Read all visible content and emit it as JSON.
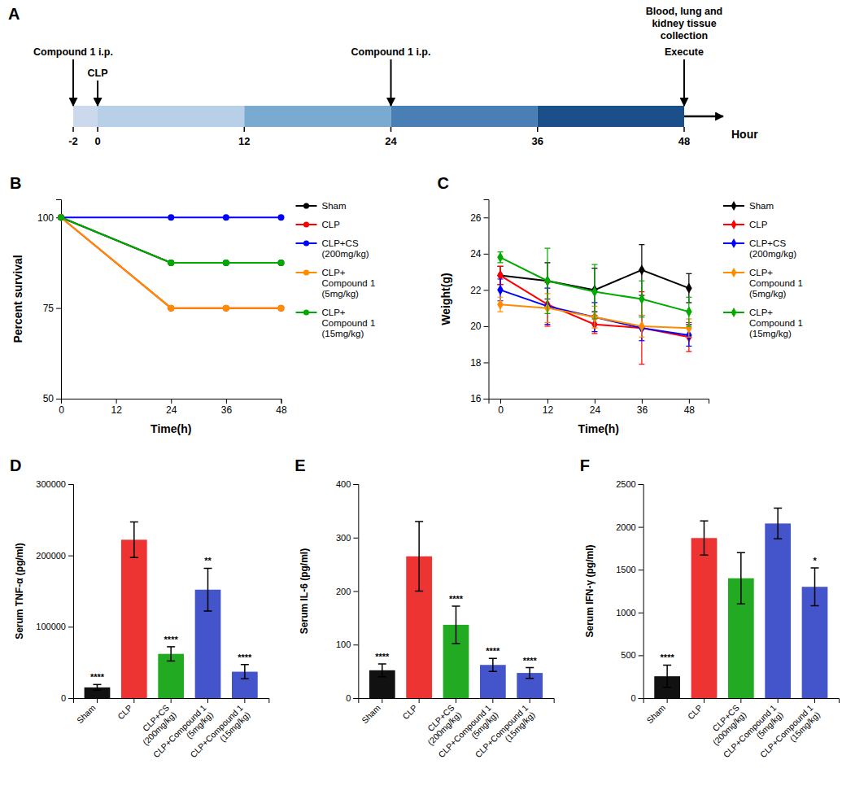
{
  "chart_data": [
    {
      "type": "timeline",
      "title": "A",
      "xlabel": "Hour",
      "xlim": [
        -2,
        48
      ],
      "xticks": [
        -2,
        0,
        12,
        24,
        36,
        48
      ],
      "x": [
        -2,
        0,
        12,
        24,
        36,
        48
      ],
      "colors": [
        "#ccd9ec",
        "#b8cfe8",
        "#7baad0",
        "#4a7fb5",
        "#1a4f8a"
      ],
      "annotations": [
        {
          "x": -2,
          "text": "Compound 1 i.p."
        },
        {
          "x": 0,
          "text": "CLP"
        },
        {
          "x": 24,
          "text": "Compound 1 i.p."
        },
        {
          "x": 48,
          "text": "Execute"
        },
        {
          "x": 48,
          "text": "Blood, lung and\nkidney tissue\ncollection"
        }
      ]
    },
    {
      "type": "line",
      "title": "B",
      "xlabel": "Time(h)",
      "ylabel": "Percent survival",
      "xlim": [
        0,
        48
      ],
      "ylim": [
        50,
        105
      ],
      "xticks": [
        0,
        12,
        24,
        36,
        48
      ],
      "yticks": [
        50,
        75,
        100
      ],
      "x": [
        0,
        24,
        36,
        48
      ],
      "marker": "circle",
      "legend": "right",
      "series": [
        {
          "name": "Sham",
          "color": "#000000",
          "values": [
            100,
            87.5,
            87.5,
            87.5
          ]
        },
        {
          "name": "CLP",
          "color": "#ff0000",
          "values": [
            100,
            75,
            75,
            75
          ]
        },
        {
          "name": "CLP+CS\n(200mg/kg)",
          "color": "#0000ff",
          "values": [
            100,
            100,
            100,
            100
          ]
        },
        {
          "name": "CLP+\nCompound 1\n(5mg/kg)",
          "color": "#ff8c00",
          "values": [
            100,
            75,
            75,
            75
          ]
        },
        {
          "name": "CLP+\nCompound 1\n(15mg/kg)",
          "color": "#00aa00",
          "values": [
            100,
            87.5,
            87.5,
            87.5
          ]
        }
      ]
    },
    {
      "type": "line",
      "title": "C",
      "xlabel": "Time(h)",
      "ylabel": "Weight(g)",
      "xlim": [
        -3,
        53
      ],
      "ylim": [
        16,
        27
      ],
      "xticks": [
        0,
        12,
        24,
        36,
        48
      ],
      "yticks": [
        16,
        18,
        20,
        22,
        24,
        26
      ],
      "x": [
        0,
        12,
        24,
        36,
        48
      ],
      "marker": "diamond",
      "legend": "right",
      "series": [
        {
          "name": "Sham",
          "color": "#000000",
          "values": [
            22.8,
            22.5,
            22.0,
            23.1,
            22.1
          ],
          "errors": [
            0.5,
            1.0,
            1.2,
            1.4,
            0.8
          ]
        },
        {
          "name": "CLP",
          "color": "#ff0000",
          "values": [
            22.8,
            21.2,
            20.1,
            19.9,
            19.4
          ],
          "errors": [
            0.5,
            1.2,
            0.5,
            2.0,
            0.8
          ]
        },
        {
          "name": "CLP+CS\n(200mg/kg)",
          "color": "#0000ff",
          "values": [
            22.0,
            21.1,
            20.5,
            19.9,
            19.5
          ],
          "errors": [
            0.6,
            1.0,
            0.8,
            0.7,
            0.6
          ]
        },
        {
          "name": "CLP+\nCompound 1\n(5mg/kg)",
          "color": "#ff8c00",
          "values": [
            21.2,
            21.0,
            20.5,
            20.0,
            19.9
          ],
          "errors": [
            0.4,
            0.8,
            0.6,
            0.6,
            0.5
          ]
        },
        {
          "name": "CLP+\nCompound 1\n(15mg/kg)",
          "color": "#00aa00",
          "values": [
            23.8,
            22.5,
            21.9,
            21.5,
            20.8
          ],
          "errors": [
            0.3,
            1.8,
            1.5,
            1.0,
            0.8
          ]
        }
      ]
    },
    {
      "type": "bar",
      "title": "D",
      "ylabel": "Serum TNF-α (pg/ml)",
      "ylim": [
        0,
        300000
      ],
      "yticks": [
        0,
        100000,
        200000,
        300000
      ],
      "categories": [
        "Sham",
        "CLP",
        "CLP+CS\n(200mg/kg)",
        "CLP+Compound 1\n(5mg/kg)",
        "CLP+Compound 1\n(15mg/kg)"
      ],
      "values": [
        15000,
        222000,
        62000,
        152000,
        37000
      ],
      "errors": [
        4000,
        25000,
        10000,
        30000,
        10000
      ],
      "colors": [
        "#111111",
        "#ee3333",
        "#22aa22",
        "#4455cc",
        "#4455cc"
      ],
      "annotations": [
        {
          "category": "Sham",
          "text": "****"
        },
        {
          "category": "CLP+CS\n(200mg/kg)",
          "text": "****"
        },
        {
          "category": "CLP+Compound 1\n(5mg/kg)",
          "text": "**"
        },
        {
          "category": "CLP+Compound 1\n(15mg/kg)",
          "text": "****"
        }
      ]
    },
    {
      "type": "bar",
      "title": "E",
      "ylabel": "Serum IL-6 (pg/ml)",
      "ylim": [
        0,
        400
      ],
      "yticks": [
        0,
        100,
        200,
        300,
        400
      ],
      "categories": [
        "Sham",
        "CLP",
        "CLP+CS\n(200mg/kg)",
        "CLP+Compound 1\n(5mg/kg)",
        "CLP+Compound 1\n(15mg/kg)"
      ],
      "values": [
        52,
        265,
        137,
        62,
        47
      ],
      "errors": [
        12,
        65,
        35,
        12,
        10
      ],
      "colors": [
        "#111111",
        "#ee3333",
        "#22aa22",
        "#4455cc",
        "#4455cc"
      ],
      "annotations": [
        {
          "category": "Sham",
          "text": "****"
        },
        {
          "category": "CLP+CS\n(200mg/kg)",
          "text": "****"
        },
        {
          "category": "CLP+Compound 1\n(5mg/kg)",
          "text": "****"
        },
        {
          "category": "CLP+Compound 1\n(15mg/kg)",
          "text": "****"
        }
      ]
    },
    {
      "type": "bar",
      "title": "F",
      "ylabel": "Serum IFN-γ (pg/ml)",
      "ylim": [
        0,
        2500
      ],
      "yticks": [
        0,
        500,
        1000,
        1500,
        2000,
        2500
      ],
      "categories": [
        "Sham",
        "CLP",
        "CLP+CS\n(200mg/kg)",
        "CLP+Compound 1\n(5mg/kg)",
        "CLP+Compound 1\n(15mg/kg)"
      ],
      "values": [
        255,
        1870,
        1400,
        2040,
        1300
      ],
      "errors": [
        130,
        200,
        300,
        180,
        220
      ],
      "colors": [
        "#111111",
        "#ee3333",
        "#22aa22",
        "#4455cc",
        "#4455cc"
      ],
      "annotations": [
        {
          "category": "Sham",
          "text": "****"
        },
        {
          "category": "CLP+Compound 1\n(15mg/kg)",
          "text": "*"
        }
      ]
    }
  ]
}
